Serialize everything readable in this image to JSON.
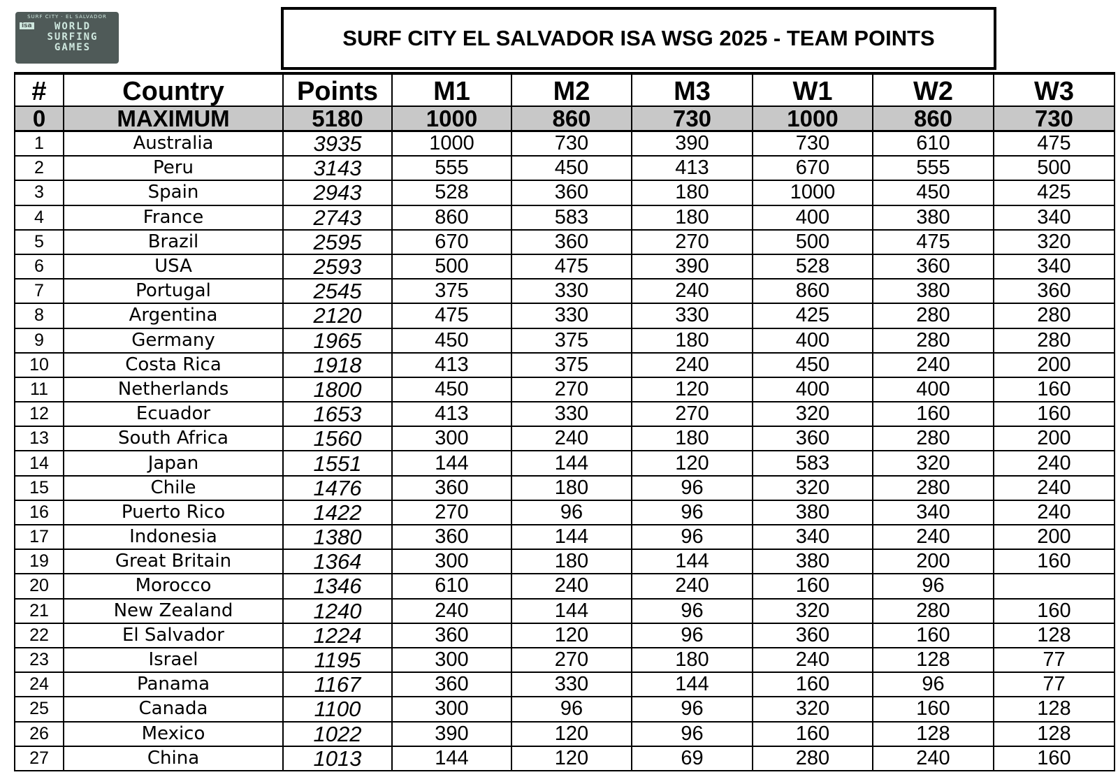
{
  "logo": {
    "top": "SURF CITY · EL SALVADOR",
    "badge": "isa",
    "lines": [
      "WORLD",
      "SURFING",
      "GAMES"
    ]
  },
  "header": {
    "title": "SURF CITY EL SALVADOR ISA WSG 2025 - TEAM POINTS"
  },
  "table": {
    "columns": [
      "#",
      "Country",
      "Points",
      "M1",
      "M2",
      "M3",
      "W1",
      "W2",
      "W3"
    ],
    "maximum": [
      0,
      "MAXIMUM",
      5180,
      1000,
      860,
      730,
      1000,
      860,
      730
    ],
    "rows": [
      [
        1,
        "Australia",
        3935,
        1000,
        730,
        390,
        730,
        610,
        475
      ],
      [
        2,
        "Peru",
        3143,
        555,
        450,
        413,
        670,
        555,
        500
      ],
      [
        3,
        "Spain",
        2943,
        528,
        360,
        180,
        1000,
        450,
        425
      ],
      [
        4,
        "France",
        2743,
        860,
        583,
        180,
        400,
        380,
        340
      ],
      [
        5,
        "Brazil",
        2595,
        670,
        360,
        270,
        500,
        475,
        320
      ],
      [
        6,
        "USA",
        2593,
        500,
        475,
        390,
        528,
        360,
        340
      ],
      [
        7,
        "Portugal",
        2545,
        375,
        330,
        240,
        860,
        380,
        360
      ],
      [
        8,
        "Argentina",
        2120,
        475,
        330,
        330,
        425,
        280,
        280
      ],
      [
        9,
        "Germany",
        1965,
        450,
        375,
        180,
        400,
        280,
        280
      ],
      [
        10,
        "Costa Rica",
        1918,
        413,
        375,
        240,
        450,
        240,
        200
      ],
      [
        11,
        "Netherlands",
        1800,
        450,
        270,
        120,
        400,
        400,
        160
      ],
      [
        12,
        "Ecuador",
        1653,
        413,
        330,
        270,
        320,
        160,
        160
      ],
      [
        13,
        "South Africa",
        1560,
        300,
        240,
        180,
        360,
        280,
        200
      ],
      [
        14,
        "Japan",
        1551,
        144,
        144,
        120,
        583,
        320,
        240
      ],
      [
        15,
        "Chile",
        1476,
        360,
        180,
        96,
        320,
        280,
        240
      ],
      [
        16,
        "Puerto Rico",
        1422,
        270,
        96,
        96,
        380,
        340,
        240
      ],
      [
        17,
        "Indonesia",
        1380,
        360,
        144,
        96,
        340,
        240,
        200
      ],
      [
        19,
        "Great Britain",
        1364,
        300,
        180,
        144,
        380,
        200,
        160
      ],
      [
        20,
        "Morocco",
        1346,
        610,
        240,
        240,
        160,
        96,
        null
      ],
      [
        21,
        "New Zealand",
        1240,
        240,
        144,
        96,
        320,
        280,
        160
      ],
      [
        22,
        "El Salvador",
        1224,
        360,
        120,
        96,
        360,
        160,
        128
      ],
      [
        23,
        "Israel",
        1195,
        300,
        270,
        180,
        240,
        128,
        77
      ],
      [
        24,
        "Panama",
        1167,
        360,
        330,
        144,
        160,
        96,
        77
      ],
      [
        25,
        "Canada",
        1100,
        300,
        96,
        96,
        320,
        160,
        128
      ],
      [
        26,
        "Mexico",
        1022,
        390,
        120,
        96,
        160,
        128,
        128
      ],
      [
        27,
        "China",
        1013,
        144,
        120,
        69,
        280,
        240,
        160
      ]
    ]
  }
}
